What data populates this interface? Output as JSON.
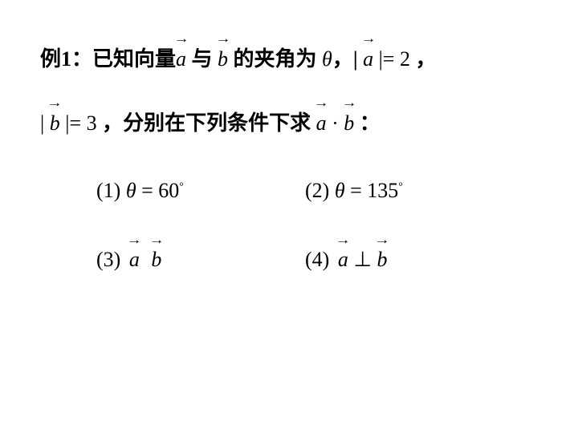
{
  "line1": {
    "prefix": "例1：已知向量",
    "vec_a": "a",
    "mid1": " 与 ",
    "vec_b": "b",
    "mid2": " 的夹角为 ",
    "theta": "θ",
    "mid3": "，| ",
    "vec_a2": "a",
    "mid4": " |= ",
    "val_a": "2",
    "suffix": " ，"
  },
  "line2": {
    "prefix": "| ",
    "vec_b": "b",
    "mid1": " |= ",
    "val_b": "3",
    "mid2": " ，分别在下列条件下求  ",
    "vec_a": "a",
    "dot": " · ",
    "vec_b2": "b",
    "suffix": " ："
  },
  "items": {
    "c1": {
      "num": "(1)  ",
      "theta": "θ",
      "eq": " = 60",
      "deg": "°"
    },
    "c2": {
      "num": "(2)  ",
      "theta": "θ",
      "eq": " = 135",
      "deg": "°"
    },
    "c3": {
      "num": "(3)  ",
      "a": "a",
      "gap": "   ",
      "b": "b"
    },
    "c4": {
      "num": "(4)  ",
      "a": "a",
      "perp": " ⊥ ",
      "b": "b"
    }
  }
}
